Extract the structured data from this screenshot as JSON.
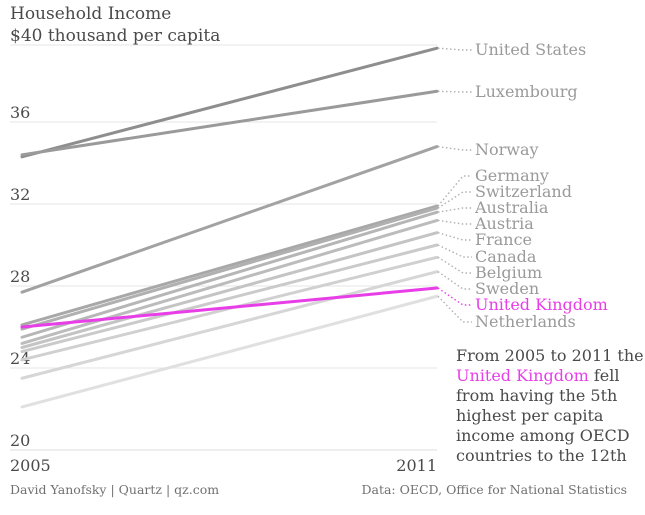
{
  "chart_data": {
    "type": "line",
    "title": "Household Income",
    "subtitle": "$40 thousand per capita",
    "x": [
      2005,
      2011
    ],
    "x_tick_labels": [
      "2005",
      "2011"
    ],
    "y_ticks": [
      20,
      24,
      28,
      32,
      36
    ],
    "y_tick_labels": [
      "20",
      "24",
      "28",
      "32",
      "36"
    ],
    "ylim": [
      19.5,
      39.8
    ],
    "grid": true,
    "highlight_color": "#e83ee8",
    "series": [
      {
        "name": "United States",
        "values": [
          34.3,
          39.6
        ],
        "color": "#8e8e8e"
      },
      {
        "name": "Luxembourg",
        "values": [
          34.4,
          37.5
        ],
        "color": "#9a9a9a"
      },
      {
        "name": "Norway",
        "values": [
          27.7,
          34.8
        ],
        "color": "#a2a2a2"
      },
      {
        "name": "Germany",
        "values": [
          26.1,
          31.9
        ],
        "color": "#a8a8a8"
      },
      {
        "name": "Switzerland",
        "values": [
          25.9,
          31.8
        ],
        "color": "#b0b0b0"
      },
      {
        "name": "Australia",
        "values": [
          25.5,
          31.6
        ],
        "color": "#b6b6b6"
      },
      {
        "name": "Austria",
        "values": [
          25.2,
          31.2
        ],
        "color": "#bcbcbc"
      },
      {
        "name": "France",
        "values": [
          25.0,
          30.6
        ],
        "color": "#c4c4c4"
      },
      {
        "name": "Canada",
        "values": [
          24.8,
          30.0
        ],
        "color": "#cacaca"
      },
      {
        "name": "Belgium",
        "values": [
          24.4,
          29.4
        ],
        "color": "#d0d0d0"
      },
      {
        "name": "Sweden",
        "values": [
          23.5,
          28.7
        ],
        "color": "#d6d6d6"
      },
      {
        "name": "United Kingdom",
        "values": [
          26.0,
          27.9
        ],
        "color": "#e83ee8",
        "highlight": true
      },
      {
        "name": "Netherlands",
        "values": [
          22.1,
          27.5
        ],
        "color": "#e0e0e0"
      }
    ]
  },
  "labels": [
    "United States",
    "Luxembourg",
    "Norway",
    "Germany",
    "Switzerland",
    "Australia",
    "Austria",
    "France",
    "Canada",
    "Belgium",
    "Sweden",
    "United Kingdom",
    "Netherlands"
  ],
  "annotation": {
    "lines": [
      [
        {
          "text": "From 2005 to 2011 the"
        }
      ],
      [
        {
          "text": "United Kingdom",
          "highlight": true
        },
        {
          "text": " fell"
        }
      ],
      [
        {
          "text": "from having the 5th"
        }
      ],
      [
        {
          "text": "highest per capita"
        }
      ],
      [
        {
          "text": "income among OECD"
        }
      ],
      [
        {
          "text": "countries to the 12th"
        }
      ]
    ]
  },
  "footer": {
    "credit": "David Yanofsky | Quartz | qz.com",
    "source": "Data: OECD, Office for National Statistics"
  }
}
